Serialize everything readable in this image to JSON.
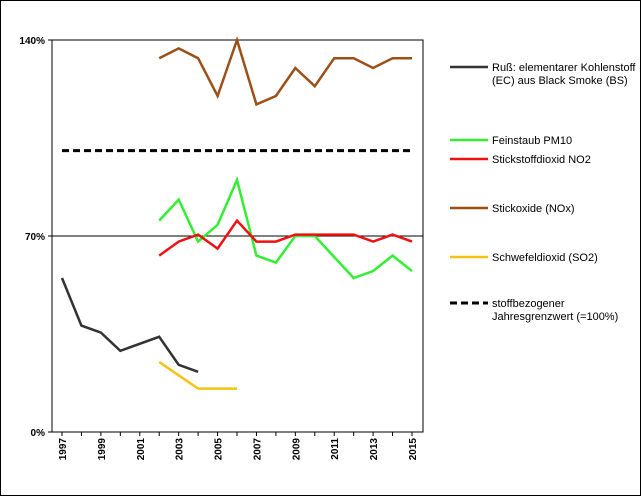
{
  "chart_data": {
    "type": "line",
    "title": "",
    "xlabel": "",
    "ylabel": "",
    "x_range": [
      1997,
      2015
    ],
    "ylim": [
      0,
      140
    ],
    "y_ticks": [
      {
        "value": 0,
        "label": "0%"
      },
      {
        "value": 70,
        "label": "70%"
      },
      {
        "value": 140,
        "label": "140%"
      }
    ],
    "x_ticks": [
      "1997",
      "1999",
      "2001",
      "2003",
      "2005",
      "2007",
      "2009",
      "2011",
      "2013",
      "2015"
    ],
    "reference_line_y": 70,
    "legend_position": "right",
    "series": [
      {
        "name": "Ruß: elementarer Kohlenstoff (EC) aus Black Smoke (BS)",
        "legend_lines": [
          "Ruß: elementarer Kohlenstoff",
          "(EC) aus Black Smoke (BS)"
        ],
        "color": "#333333",
        "dash": "solid",
        "points": [
          [
            1997,
            55
          ],
          [
            1998,
            38
          ],
          [
            1999,
            35.5
          ],
          [
            2000,
            29
          ],
          [
            2002,
            34
          ],
          [
            2003,
            24
          ],
          [
            2004,
            21.5
          ]
        ]
      },
      {
        "name": "Feinstaub PM10",
        "legend_lines": [
          "Feinstaub PM10"
        ],
        "color": "#33ee33",
        "dash": "solid",
        "points": [
          [
            2002,
            75.5
          ],
          [
            2003,
            83
          ],
          [
            2004,
            68
          ],
          [
            2005,
            74
          ],
          [
            2006,
            90
          ],
          [
            2007,
            63
          ],
          [
            2008,
            60.5
          ],
          [
            2009,
            70
          ],
          [
            2010,
            70
          ],
          [
            2011,
            62.5
          ],
          [
            2012,
            55
          ],
          [
            2013,
            57.5
          ],
          [
            2014,
            63
          ],
          [
            2015,
            57.5
          ]
        ]
      },
      {
        "name": "Stickstoffdioxid NO2",
        "legend_lines": [
          "Stickstoffdioxid NO2"
        ],
        "color": "#ee1111",
        "dash": "solid",
        "points": [
          [
            2002,
            63
          ],
          [
            2003,
            68
          ],
          [
            2004,
            70.5
          ],
          [
            2005,
            65.5
          ],
          [
            2006,
            75.5
          ],
          [
            2007,
            68
          ],
          [
            2008,
            68
          ],
          [
            2009,
            70.5
          ],
          [
            2010,
            70.5
          ],
          [
            2011,
            70.5
          ],
          [
            2012,
            70.5
          ],
          [
            2013,
            68
          ],
          [
            2014,
            70.5
          ],
          [
            2015,
            68
          ]
        ]
      },
      {
        "name": "Stickoxide (NOx)",
        "legend_lines": [
          "Stickoxide (NOx)"
        ],
        "color": "#9c5017",
        "dash": "solid",
        "points": [
          [
            2002,
            133.5
          ],
          [
            2003,
            137
          ],
          [
            2004,
            133.5
          ],
          [
            2005,
            120
          ],
          [
            2006,
            140
          ],
          [
            2007,
            117
          ],
          [
            2008,
            120
          ],
          [
            2009,
            130
          ],
          [
            2010,
            123.5
          ],
          [
            2011,
            133.5
          ],
          [
            2012,
            133.5
          ],
          [
            2013,
            130
          ],
          [
            2014,
            133.5
          ],
          [
            2015,
            133.5
          ]
        ]
      },
      {
        "name": "Schwefeldioxid (SO2)",
        "legend_lines": [
          "Schwefeldioxid (SO2)"
        ],
        "color": "#f5c211",
        "dash": "solid",
        "points": [
          [
            2002,
            25
          ],
          [
            2004,
            15.5
          ],
          [
            2006,
            15.5
          ]
        ]
      },
      {
        "name": "stoffbezogener Jahresgrenzwert (=100%)",
        "legend_lines": [
          "stoffbezogener",
          "Jahresgrenzwert (=100%)"
        ],
        "color": "#000000",
        "dash": "dashed",
        "points": [
          [
            1997,
            100.5
          ],
          [
            2015,
            100.5
          ]
        ]
      }
    ]
  }
}
